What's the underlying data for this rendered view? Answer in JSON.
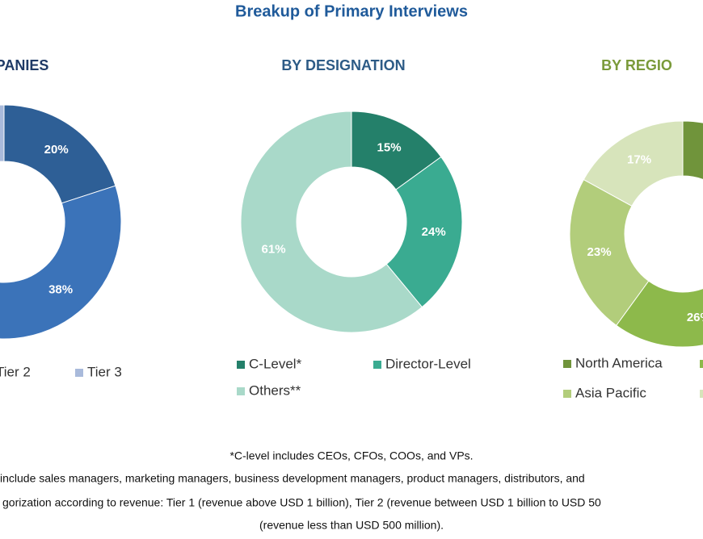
{
  "title": "Breakup of Primary Interviews",
  "chart_data": [
    {
      "type": "donut",
      "title": "MPANIES",
      "title_color": "#1f3a66",
      "categories": [
        null,
        "Tier 2",
        "Tier 3"
      ],
      "values": [
        20,
        38,
        42
      ],
      "value_labels": [
        "20%",
        "38%",
        null
      ],
      "colors": [
        "#2e5f96",
        "#3b73b9",
        "#a9badb"
      ]
    },
    {
      "type": "donut",
      "title": "BY DESIGNATION",
      "title_color": "#2d5b86",
      "categories": [
        "C-Level*",
        "Director-Level",
        "Others**"
      ],
      "values": [
        15,
        24,
        61
      ],
      "value_labels": [
        "15%",
        "24%",
        "61%"
      ],
      "colors": [
        "#24806a",
        "#3aab91",
        "#a9d9c9"
      ]
    },
    {
      "type": "donut",
      "title": "BY REGIO",
      "title_color": "#7a9a3a",
      "categories": [
        "North America",
        null,
        "Asia Pacific",
        null
      ],
      "values": [
        34,
        26,
        23,
        17
      ],
      "value_labels": [
        null,
        "26%",
        "23%",
        "17%"
      ],
      "colors": [
        "#70943b",
        "#8db94b",
        "#b2cd7b",
        "#d7e4bb"
      ]
    }
  ],
  "footnotes": [
    "*C-level includes CEOs, CFOs, COOs, and VPs.",
    "include sales managers, marketing managers, business development managers, product managers, distributors, and",
    "gorization according to revenue: Tier 1 (revenue above USD 1 billion), Tier 2 (revenue between USD 1 billion to USD 50",
    "(revenue less than USD 500 million)."
  ]
}
